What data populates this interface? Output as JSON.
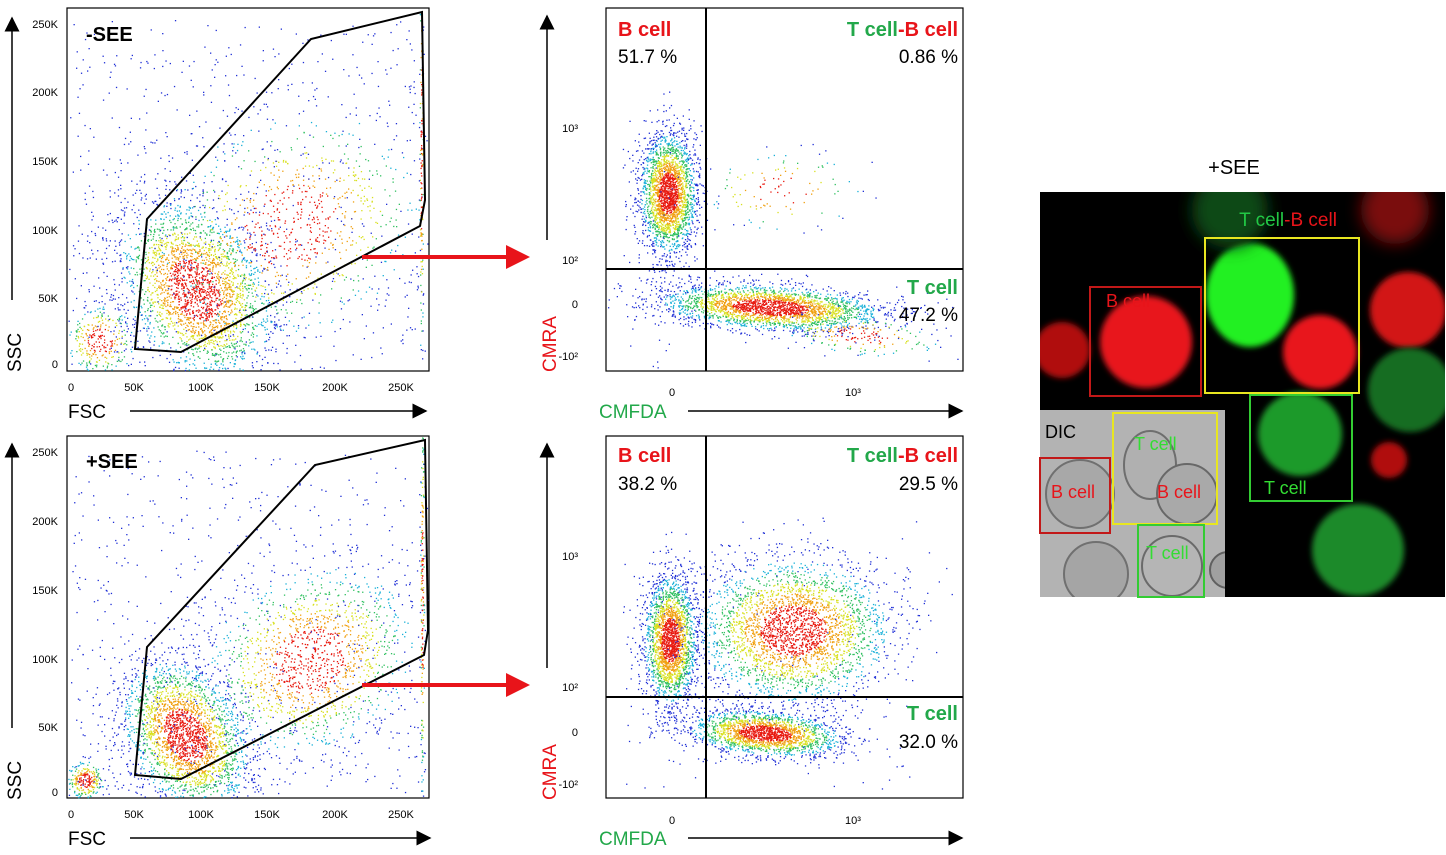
{
  "colors": {
    "red": "#e8141a",
    "green": "#22a84a",
    "gate": "#000000",
    "arrow": "#e8141a",
    "dot_low": "#1f2fd6",
    "dot_high": "#e81a10"
  },
  "panels": {
    "top_condition": "-SEE",
    "bottom_condition": "+SEE",
    "scatter_xlabel": "FSC",
    "scatter_ylabel": "SSC",
    "quad_xlabel": "CMFDA",
    "quad_ylabel": "CMRA",
    "scatter_yticks": [
      "250K",
      "200K",
      "150K",
      "100K",
      "50K",
      "0"
    ],
    "scatter_xticks": [
      "0",
      "50K",
      "100K",
      "150K",
      "200K",
      "250K"
    ],
    "quad_yticks": [
      "10³",
      "10²",
      "0",
      "-10²"
    ],
    "quad_xticks": [
      "0",
      "10³"
    ]
  },
  "quadrants": {
    "b_label": "B cell",
    "t_label": "T cell",
    "conj_t": "T cell",
    "conj_sep": "-",
    "conj_b": "B cell",
    "top": {
      "b_pct": "51.7 %",
      "conj_pct": "0.86 %",
      "t_pct": "47.2 %"
    },
    "bottom": {
      "b_pct": "38.2 %",
      "conj_pct": "29.5 %",
      "t_pct": "32.0 %"
    }
  },
  "microscopy": {
    "title": "+SEE",
    "conj_t": "T cell",
    "conj_sep": "-",
    "conj_b": "B cell",
    "b_box": "B cell",
    "t_box": "T cell",
    "dic_label": "DIC",
    "dic_t1": "T cell",
    "dic_b1": "B cell",
    "dic_b2": "B cell",
    "dic_t2": "T cell"
  },
  "chart_data": [
    {
      "type": "scatter",
      "title": "-SEE",
      "xlabel": "FSC",
      "ylabel": "SSC",
      "xlim": [
        0,
        270000
      ],
      "ylim": [
        0,
        260000
      ],
      "gate_polygon": [
        [
          50000,
          14000
        ],
        [
          60000,
          107000
        ],
        [
          180000,
          240000
        ],
        [
          265000,
          260000
        ],
        [
          267000,
          120000
        ],
        [
          262000,
          100000
        ],
        [
          85000,
          9000
        ]
      ],
      "clusters": [
        {
          "x": 95000,
          "y": 55000
        }
      ]
    },
    {
      "type": "scatter",
      "title": "+SEE",
      "xlabel": "FSC",
      "ylabel": "SSC",
      "xlim": [
        0,
        270000
      ],
      "ylim": [
        0,
        260000
      ],
      "gate_polygon": [
        [
          50000,
          14000
        ],
        [
          60000,
          107000
        ],
        [
          180000,
          240000
        ],
        [
          265000,
          260000
        ],
        [
          267000,
          120000
        ],
        [
          262000,
          100000
        ],
        [
          85000,
          9000
        ]
      ],
      "clusters": [
        {
          "x": 85000,
          "y": 40000
        },
        {
          "x": 185000,
          "y": 110000
        }
      ]
    },
    {
      "type": "scatter",
      "title": "-SEE",
      "xlabel": "CMFDA",
      "ylabel": "CMRA",
      "quadrants": {
        "B cell": 51.7,
        "T cell-B cell": 0.86,
        "T cell": 47.2
      }
    },
    {
      "type": "scatter",
      "title": "+SEE",
      "xlabel": "CMFDA",
      "ylabel": "CMRA",
      "quadrants": {
        "B cell": 38.2,
        "T cell-B cell": 29.5,
        "T cell": 32.0
      }
    }
  ]
}
